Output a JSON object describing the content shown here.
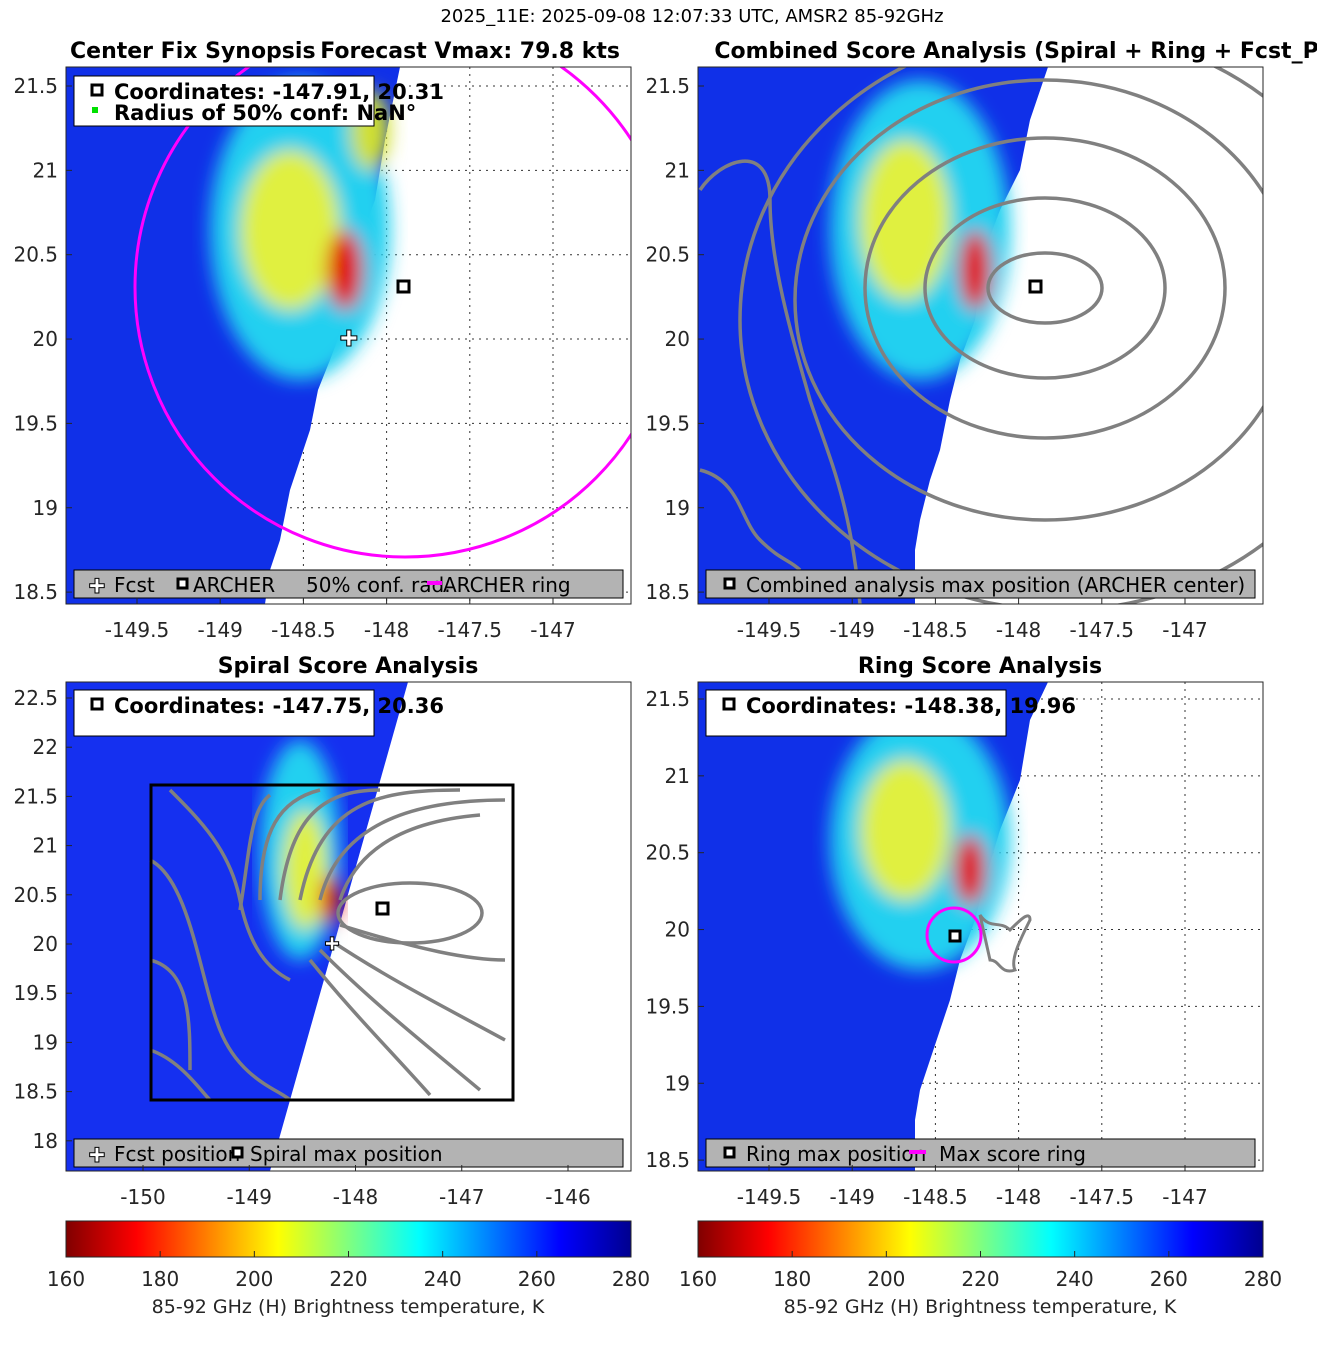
{
  "suptitle": "2025_11E: 2025-09-08 12:07:33 UTC, AMSR2 85-92GHz",
  "panels": [
    {
      "title_left": "Center Fix Synopsis",
      "title_right": "Forecast Vmax: 79.8 kts",
      "info": [
        "Coordinates: -147.91, 20.31",
        "Radius of 50% conf: NaN°"
      ],
      "legend": [
        "Fcst",
        "ARCHER",
        "50% conf. rad.",
        "ARCHER ring"
      ],
      "xticks": [
        -149.5,
        -149,
        -148.5,
        -148,
        -147.5,
        -147
      ],
      "yticks": [
        21.5,
        21,
        20.5,
        20,
        19.5,
        19,
        18.5
      ]
    },
    {
      "title": "Combined Score Analysis (Spiral + Ring + Fcst_Pe",
      "legend": [
        "Combined analysis max position (ARCHER center)"
      ],
      "xticks": [
        -149.5,
        -149,
        -148.5,
        -148,
        -147.5,
        -147
      ],
      "yticks": [
        21.5,
        21,
        20.5,
        20,
        19.5,
        19,
        18.5
      ]
    },
    {
      "title": "Spiral Score Analysis",
      "info": [
        "Coordinates: -147.75, 20.36"
      ],
      "legend": [
        "Fcst position",
        "Spiral max position"
      ],
      "xticks": [
        -150,
        -149,
        -148,
        -147,
        -146
      ],
      "yticks": [
        22.5,
        22,
        21.5,
        21,
        20.5,
        20,
        19.5,
        19,
        18.5,
        18
      ]
    },
    {
      "title": "Ring Score Analysis",
      "info": [
        "Coordinates: -148.38, 19.96"
      ],
      "legend": [
        "Ring max position",
        "Max score ring"
      ],
      "xticks": [
        -149.5,
        -149,
        -148.5,
        -148,
        -147.5,
        -147
      ],
      "yticks": [
        21.5,
        21,
        20.5,
        20,
        19.5,
        19,
        18.5
      ]
    }
  ],
  "colorbar": {
    "ticks": [
      160,
      180,
      200,
      220,
      240,
      260,
      280
    ],
    "label": "85-92 GHz (H) Brightness temperature, K",
    "colormap": "jet reversed",
    "range": [
      160,
      280
    ]
  },
  "colors": {
    "ring": "#ff00ff",
    "contour": "#808080",
    "legend_bg": "#b3b3b3"
  },
  "chart_data": {
    "type": "heatmap",
    "title": "2025_11E: 2025-09-08 12:07:33 UTC, AMSR2 85-92GHz",
    "center_estimates": {
      "archer": [
        -147.91,
        20.31
      ],
      "spiral": [
        -147.75,
        20.36
      ],
      "ring": [
        -148.38,
        19.96
      ]
    },
    "forecast_vmax_kts": 79.8,
    "clim": [
      160,
      280
    ]
  }
}
